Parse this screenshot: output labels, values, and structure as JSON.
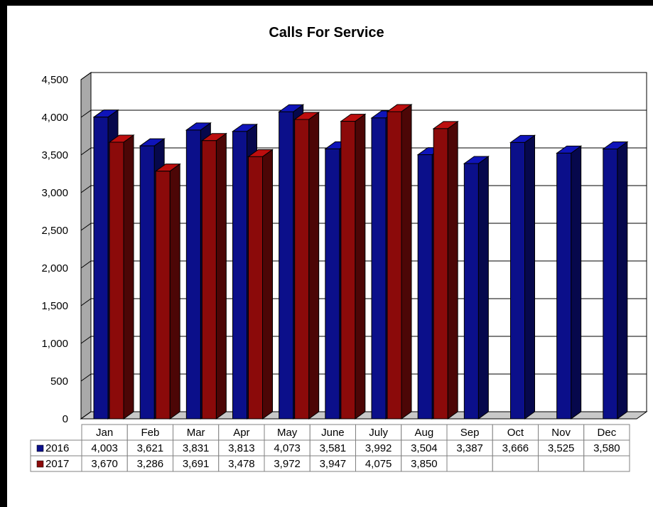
{
  "chart_data": {
    "type": "bar",
    "title": "Calls For Service",
    "categories": [
      "Jan",
      "Feb",
      "Mar",
      "Apr",
      "May",
      "June",
      "July",
      "Aug",
      "Sep",
      "Oct",
      "Nov",
      "Dec"
    ],
    "series": [
      {
        "name": "2016",
        "color": "#0b0f8a",
        "values": [
          4003,
          3621,
          3831,
          3813,
          4073,
          3581,
          3992,
          3504,
          3387,
          3666,
          3525,
          3580
        ]
      },
      {
        "name": "2017",
        "color": "#8b0a0a",
        "values": [
          3670,
          3286,
          3691,
          3478,
          3972,
          3947,
          4075,
          3850,
          null,
          null,
          null,
          null
        ]
      }
    ],
    "table": {
      "rows": [
        {
          "label": "2016",
          "cells": [
            "4,003",
            "3,621",
            "3,831",
            "3,813",
            "4,073",
            "3,581",
            "3,992",
            "3,504",
            "3,387",
            "3,666",
            "3,525",
            "3,580"
          ]
        },
        {
          "label": "2017",
          "cells": [
            "3,670",
            "3,286",
            "3,691",
            "3,478",
            "3,972",
            "3,947",
            "4,075",
            "3,850",
            "",
            "",
            "",
            ""
          ]
        }
      ]
    },
    "yticks": [
      "0",
      "500",
      "1,000",
      "1,500",
      "2,000",
      "2,500",
      "3,000",
      "3,500",
      "4,000",
      "4,500"
    ],
    "ylim": [
      0,
      4500
    ],
    "grid": true,
    "legend": "data table left column"
  }
}
